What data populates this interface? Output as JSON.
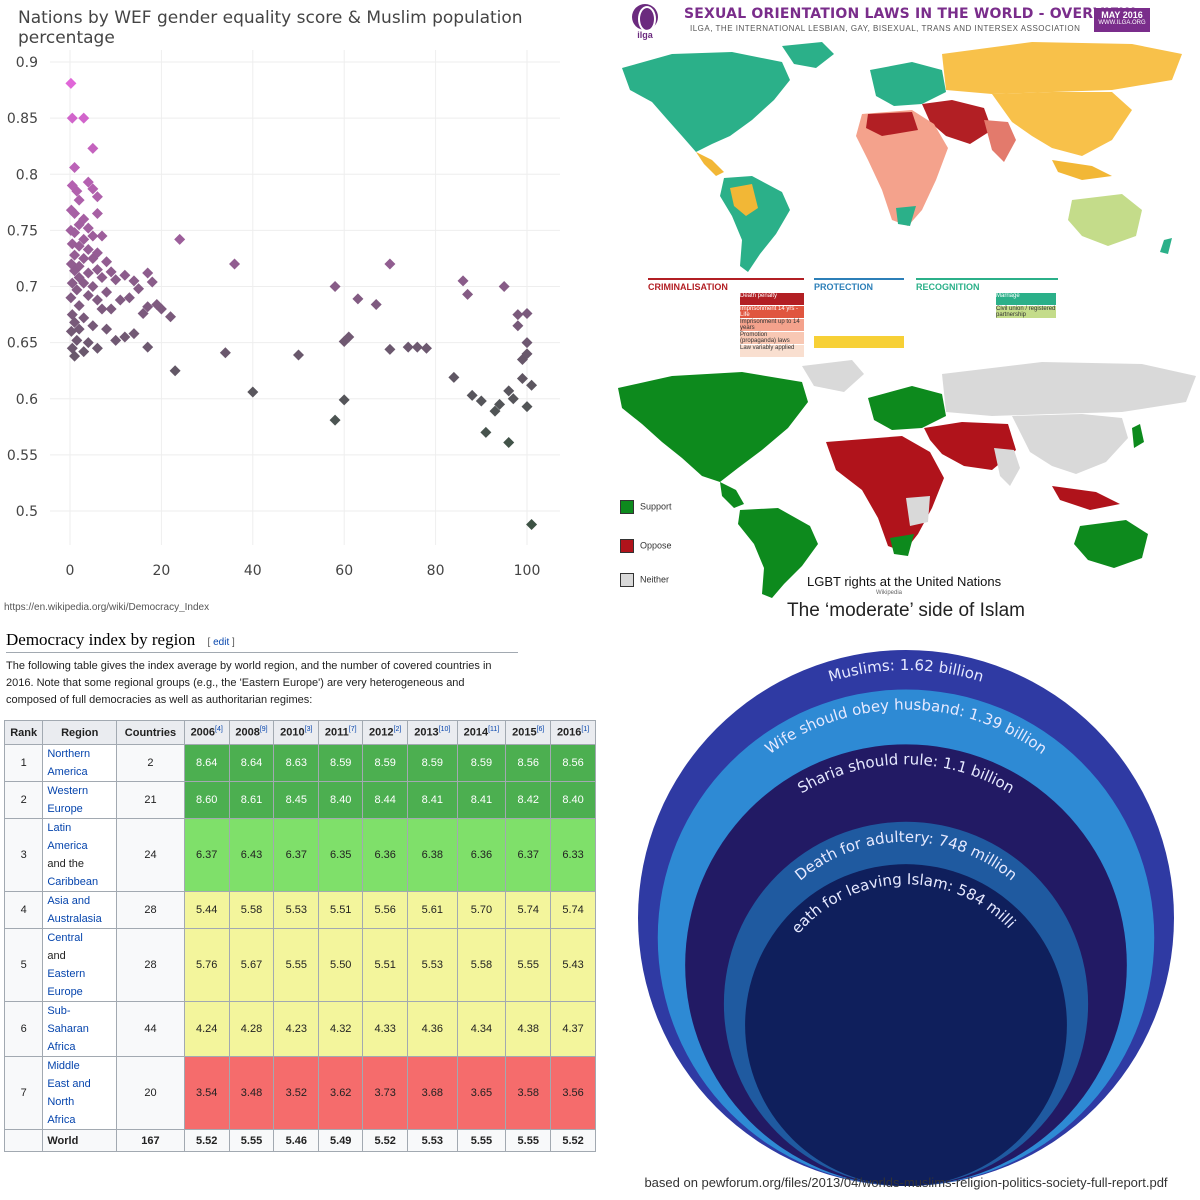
{
  "scatter": {
    "chart_data": {
      "type": "scatter",
      "title": "Nations by WEF gender equality score & Muslim population percentage",
      "xlabel": "",
      "ylabel": "",
      "xlim": [
        0,
        100
      ],
      "ylim": [
        0.47,
        0.9
      ],
      "x_ticks": [
        "0",
        "20",
        "40",
        "60",
        "80",
        "100"
      ],
      "y_ticks": [
        "0.9",
        "0.85",
        "0.8",
        "0.75",
        "0.7",
        "0.65",
        "0.6",
        "0.55",
        "0.5"
      ],
      "series": [
        {
          "name": "countries",
          "points": [
            [
              0.2,
              0.881
            ],
            [
              0.5,
              0.85
            ],
            [
              3,
              0.85
            ],
            [
              5,
              0.823
            ],
            [
              1,
              0.806
            ],
            [
              0.5,
              0.79
            ],
            [
              1.5,
              0.785
            ],
            [
              4,
              0.793
            ],
            [
              5,
              0.787
            ],
            [
              2,
              0.777
            ],
            [
              6,
              0.78
            ],
            [
              0.3,
              0.768
            ],
            [
              1,
              0.765
            ],
            [
              3,
              0.76
            ],
            [
              6,
              0.765
            ],
            [
              2,
              0.755
            ],
            [
              4,
              0.752
            ],
            [
              0.2,
              0.75
            ],
            [
              1,
              0.748
            ],
            [
              3,
              0.742
            ],
            [
              5,
              0.745
            ],
            [
              7,
              0.745
            ],
            [
              0.5,
              0.738
            ],
            [
              2,
              0.736
            ],
            [
              4,
              0.733
            ],
            [
              6,
              0.73
            ],
            [
              1,
              0.728
            ],
            [
              3,
              0.725
            ],
            [
              5,
              0.725
            ],
            [
              0.3,
              0.72
            ],
            [
              2,
              0.718
            ],
            [
              8,
              0.722
            ],
            [
              1,
              0.714
            ],
            [
              4,
              0.712
            ],
            [
              6,
              0.715
            ],
            [
              9,
              0.713
            ],
            [
              2,
              0.708
            ],
            [
              7,
              0.708
            ],
            [
              0.5,
              0.703
            ],
            [
              3,
              0.703
            ],
            [
              5,
              0.7
            ],
            [
              10,
              0.706
            ],
            [
              12,
              0.71
            ],
            [
              14,
              0.705
            ],
            [
              17,
              0.712
            ],
            [
              18,
              0.704
            ],
            [
              1.5,
              0.697
            ],
            [
              8,
              0.695
            ],
            [
              15,
              0.698
            ],
            [
              0.2,
              0.69
            ],
            [
              4,
              0.692
            ],
            [
              6,
              0.688
            ],
            [
              11,
              0.688
            ],
            [
              13,
              0.69
            ],
            [
              17,
              0.682
            ],
            [
              19,
              0.684
            ],
            [
              2,
              0.683
            ],
            [
              7,
              0.68
            ],
            [
              9,
              0.68
            ],
            [
              16,
              0.676
            ],
            [
              20,
              0.68
            ],
            [
              22,
              0.673
            ],
            [
              0.5,
              0.675
            ],
            [
              3,
              0.672
            ],
            [
              1,
              0.668
            ],
            [
              5,
              0.665
            ],
            [
              0.3,
              0.66
            ],
            [
              2,
              0.662
            ],
            [
              8,
              0.662
            ],
            [
              14,
              0.658
            ],
            [
              12,
              0.655
            ],
            [
              1.5,
              0.652
            ],
            [
              4,
              0.65
            ],
            [
              10,
              0.652
            ],
            [
              17,
              0.646
            ],
            [
              0.5,
              0.645
            ],
            [
              3,
              0.642
            ],
            [
              1,
              0.638
            ],
            [
              6,
              0.645
            ],
            [
              24,
              0.742
            ],
            [
              23,
              0.625
            ],
            [
              34,
              0.641
            ],
            [
              36,
              0.72
            ],
            [
              40,
              0.606
            ],
            [
              50,
              0.639
            ],
            [
              58,
              0.7
            ],
            [
              58,
              0.581
            ],
            [
              60,
              0.599
            ],
            [
              60,
              0.651
            ],
            [
              61,
              0.655
            ],
            [
              63,
              0.689
            ],
            [
              67,
              0.684
            ],
            [
              70,
              0.72
            ],
            [
              70,
              0.644
            ],
            [
              74,
              0.646
            ],
            [
              76,
              0.646
            ],
            [
              78,
              0.645
            ],
            [
              84,
              0.619
            ],
            [
              86,
              0.705
            ],
            [
              87,
              0.693
            ],
            [
              88,
              0.603
            ],
            [
              90,
              0.598
            ],
            [
              91,
              0.57
            ],
            [
              93,
              0.589
            ],
            [
              94,
              0.595
            ],
            [
              95,
              0.7
            ],
            [
              96,
              0.607
            ],
            [
              96,
              0.561
            ],
            [
              97,
              0.6
            ],
            [
              98,
              0.665
            ],
            [
              98,
              0.675
            ],
            [
              99,
              0.618
            ],
            [
              99,
              0.635
            ],
            [
              100,
              0.676
            ],
            [
              100,
              0.64
            ],
            [
              100,
              0.593
            ],
            [
              100,
              0.65
            ],
            [
              101,
              0.612
            ],
            [
              101,
              0.488
            ]
          ]
        }
      ]
    },
    "source_url": "https://en.wikipedia.org/wiki/Democracy_Index"
  },
  "ilga_map": {
    "logo_text": "ilga",
    "title": "SEXUAL ORIENTATION LAWS IN THE WORLD - OVERVIEW",
    "subtitle": "ILGA, THE INTERNATIONAL LESBIAN, GAY, BISEXUAL, TRANS AND INTERSEX ASSOCIATION",
    "date": "MAY 2016",
    "date_url": "WWW.ILGA.ORG",
    "legend": {
      "criminalisation": "CRIMINALISATION",
      "protection": "PROTECTION",
      "recognition": "RECOGNITION",
      "crim_items": [
        "Death penalty",
        "Imprisonment 14 yrs - Life",
        "Imprisonment up to 14 years",
        "Promotion (propaganda) laws",
        "Law variably applied"
      ],
      "rec_items": [
        "Marriage",
        "Civil union / registered partnership"
      ],
      "colors": {
        "north_america": "#2bb089",
        "sea": "#ffffff",
        "south_america": "#f2b736",
        "africa_crim": "#f4a28c",
        "africa_death": "#b21f24",
        "europe": "#2bb089",
        "russia_asia": "#f8c14a",
        "australia": "#c4dc8a",
        "india": "#e37a6c"
      }
    }
  },
  "un_map": {
    "legend": [
      {
        "label": "Support",
        "color": "#0d8a1d"
      },
      {
        "label": "Oppose",
        "color": "#b0131b"
      },
      {
        "label": "Neither",
        "color": "#d9d9d9"
      }
    ],
    "caption": "LGBT rights at the United Nations",
    "caption_source": "Wikipedia"
  },
  "democracy": {
    "heading": "Democracy index by region",
    "edit_label": "edit",
    "paragraph": "The following table gives the index average by world region, and the number of covered countries in 2016. Note that some regional groups (e.g., the 'Eastern Europe') are very heterogeneous and composed of full democracies as well as authoritarian regimes:",
    "headers": [
      {
        "label": "Rank"
      },
      {
        "label": "Region"
      },
      {
        "label": "Countries"
      },
      {
        "label": "2006",
        "ref": "[4]"
      },
      {
        "label": "2008",
        "ref": "[9]"
      },
      {
        "label": "2010",
        "ref": "[3]"
      },
      {
        "label": "2011",
        "ref": "[7]"
      },
      {
        "label": "2012",
        "ref": "[2]"
      },
      {
        "label": "2013",
        "ref": "[10]"
      },
      {
        "label": "2014",
        "ref": "[11]"
      },
      {
        "label": "2015",
        "ref": "[6]"
      },
      {
        "label": "2016",
        "ref": "[1]"
      }
    ],
    "rows": [
      {
        "rank": "1",
        "region": "Northern America",
        "region_lines": [
          "Northern",
          "America"
        ],
        "countries": "2",
        "cls": "c-full",
        "values": [
          "8.64",
          "8.64",
          "8.63",
          "8.59",
          "8.59",
          "8.59",
          "8.59",
          "8.56",
          "8.56"
        ]
      },
      {
        "rank": "2",
        "region": "Western Europe",
        "region_lines": [
          "Western",
          "Europe"
        ],
        "countries": "21",
        "cls": "c-full",
        "values": [
          "8.60",
          "8.61",
          "8.45",
          "8.40",
          "8.44",
          "8.41",
          "8.41",
          "8.42",
          "8.40"
        ]
      },
      {
        "rank": "3",
        "region": "Latin America and the Caribbean",
        "region_lines": [
          "Latin",
          "America",
          "and the",
          "Caribbean"
        ],
        "countries": "24",
        "cls": "c-flawed",
        "values": [
          "6.37",
          "6.43",
          "6.37",
          "6.35",
          "6.36",
          "6.38",
          "6.36",
          "6.37",
          "6.33"
        ]
      },
      {
        "rank": "4",
        "region": "Asia and Australasia",
        "region_lines": [
          "Asia and",
          "Australasia"
        ],
        "countries": "28",
        "cls": "c-hybrid",
        "values": [
          "5.44",
          "5.58",
          "5.53",
          "5.51",
          "5.56",
          "5.61",
          "5.70",
          "5.74",
          "5.74"
        ]
      },
      {
        "rank": "5",
        "region": "Central and Eastern Europe",
        "region_lines": [
          "Central",
          "and",
          "Eastern",
          "Europe"
        ],
        "countries": "28",
        "cls": "c-hybrid",
        "values": [
          "5.76",
          "5.67",
          "5.55",
          "5.50",
          "5.51",
          "5.53",
          "5.58",
          "5.55",
          "5.43"
        ]
      },
      {
        "rank": "6",
        "region": "Sub-Saharan Africa",
        "region_lines": [
          "Sub-",
          "Saharan",
          "Africa"
        ],
        "countries": "44",
        "cls": "c-hybrid",
        "values": [
          "4.24",
          "4.28",
          "4.23",
          "4.32",
          "4.33",
          "4.36",
          "4.34",
          "4.38",
          "4.37"
        ]
      },
      {
        "rank": "7",
        "region": "Middle East and North Africa",
        "region_lines": [
          "Middle",
          "East and",
          "North",
          "Africa"
        ],
        "countries": "20",
        "cls": "c-auth",
        "values": [
          "3.54",
          "3.48",
          "3.52",
          "3.62",
          "3.73",
          "3.68",
          "3.65",
          "3.58",
          "3.56"
        ]
      }
    ],
    "world": {
      "rank": "",
      "region": "World",
      "countries": "167",
      "values": [
        "5.52",
        "5.55",
        "5.46",
        "5.49",
        "5.52",
        "5.53",
        "5.55",
        "5.55",
        "5.52"
      ]
    }
  },
  "circles": {
    "title": "The ‘moderate’ side of Islam",
    "chart_data": {
      "type": "nested-circles",
      "unit": "people",
      "items": [
        {
          "label": "Muslims: 1.62 billion",
          "value": 1.62,
          "color": "#2f3aa3"
        },
        {
          "label": "Wife should obey husband: 1.39 billion",
          "value": 1.39,
          "color": "#2e8ad4"
        },
        {
          "label": "Sharia should rule: 1.1 billion",
          "value": 1.1,
          "color": "#221a64"
        },
        {
          "label": "Death for adultery: 748 million",
          "value": 0.748,
          "color": "#1f5aa0"
        },
        {
          "label": "Death for leaving Islam: 584 million",
          "value": 0.584,
          "color": "#0f1f5c"
        }
      ]
    },
    "footnote": "based on pewforum.org/files/2013/04/worlds-muslims-religion-politics-society-full-report.pdf"
  }
}
